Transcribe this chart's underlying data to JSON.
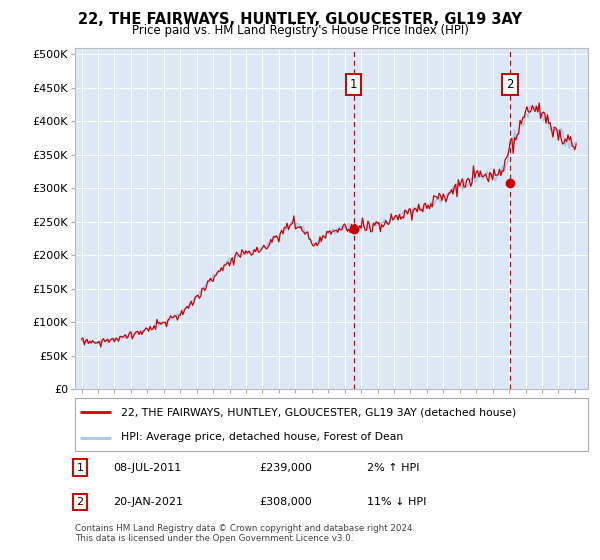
{
  "title": "22, THE FAIRWAYS, HUNTLEY, GLOUCESTER, GL19 3AY",
  "subtitle": "Price paid vs. HM Land Registry's House Price Index (HPI)",
  "hpi_legend": "HPI: Average price, detached house, Forest of Dean",
  "price_legend": "22, THE FAIRWAYS, HUNTLEY, GLOUCESTER, GL19 3AY (detached house)",
  "ann1_date": "08-JUL-2011",
  "ann1_price": "£239,000",
  "ann1_note": "2% ↑ HPI",
  "ann1_year": 2011.54,
  "ann1_val": 239000,
  "ann2_date": "20-JAN-2021",
  "ann2_price": "£308,000",
  "ann2_note": "11% ↓ HPI",
  "ann2_year": 2021.05,
  "ann2_val": 308000,
  "footer": "Contains HM Land Registry data © Crown copyright and database right 2024.\nThis data is licensed under the Open Government Licence v3.0.",
  "hpi_color": "#aac8e8",
  "price_color": "#cc0000",
  "bg_color": "#dce8f5",
  "ytick_labels": [
    "£0",
    "£50K",
    "£100K",
    "£150K",
    "£200K",
    "£250K",
    "£300K",
    "£350K",
    "£400K",
    "£450K",
    "£500K"
  ],
  "ytick_vals": [
    0,
    50000,
    100000,
    150000,
    200000,
    250000,
    300000,
    350000,
    400000,
    450000,
    500000
  ],
  "ylim": [
    0,
    510000
  ],
  "xlim_min": 1994.6,
  "xlim_max": 2025.8
}
